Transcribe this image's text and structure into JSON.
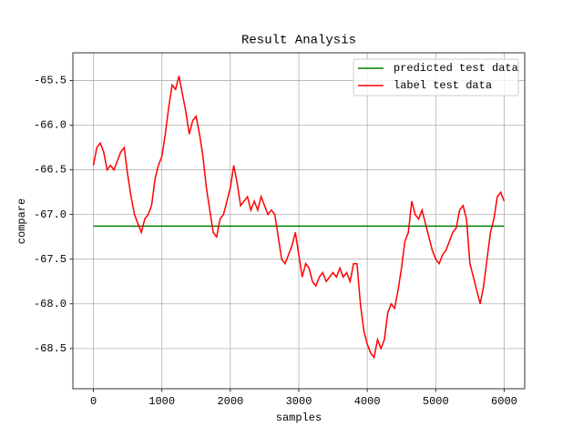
{
  "chart_data": {
    "type": "line",
    "title": "Result Analysis",
    "xlabel": "samples",
    "ylabel": "compare",
    "xlim": [
      -300,
      6300
    ],
    "ylim": [
      -68.95,
      -65.19
    ],
    "xticks": [
      0,
      1000,
      2000,
      3000,
      4000,
      5000,
      6000
    ],
    "yticks": [
      -65.5,
      {
        "value": -66.0,
        "label": "-66.0"
      },
      -66.5,
      {
        "value": -67.0,
        "label": "-67.0"
      },
      -67.5,
      {
        "value": -68.0,
        "label": "-68.0"
      },
      -68.5
    ],
    "grid": true,
    "legend": "upper right",
    "series": [
      {
        "name": "predicted test data",
        "color": "#008000",
        "x": [
          0,
          6000
        ],
        "values": [
          -67.13,
          -67.13
        ]
      },
      {
        "name": "label test data",
        "color": "#ff0000",
        "x": [
          0,
          50,
          100,
          150,
          200,
          250,
          300,
          350,
          400,
          450,
          500,
          550,
          600,
          650,
          700,
          750,
          800,
          850,
          900,
          950,
          1000,
          1050,
          1100,
          1150,
          1200,
          1250,
          1300,
          1350,
          1400,
          1450,
          1500,
          1550,
          1600,
          1650,
          1700,
          1750,
          1800,
          1850,
          1900,
          1950,
          2000,
          2050,
          2100,
          2150,
          2200,
          2250,
          2300,
          2350,
          2400,
          2450,
          2500,
          2550,
          2600,
          2650,
          2700,
          2750,
          2800,
          2850,
          2900,
          2950,
          3000,
          3050,
          3100,
          3150,
          3200,
          3250,
          3300,
          3350,
          3400,
          3450,
          3500,
          3550,
          3600,
          3650,
          3700,
          3750,
          3800,
          3850,
          3900,
          3950,
          4000,
          4050,
          4100,
          4150,
          4200,
          4250,
          4300,
          4350,
          4400,
          4450,
          4500,
          4550,
          4600,
          4650,
          4700,
          4750,
          4800,
          4850,
          4900,
          4950,
          5000,
          5050,
          5100,
          5150,
          5200,
          5250,
          5300,
          5350,
          5400,
          5450,
          5500,
          5550,
          5600,
          5650,
          5700,
          5750,
          5800,
          5850,
          5900,
          5950,
          6000
        ],
        "values": [
          -66.45,
          -66.25,
          -66.2,
          -66.3,
          -66.5,
          -66.45,
          -66.5,
          -66.4,
          -66.3,
          -66.25,
          -66.55,
          -66.8,
          -67.0,
          -67.1,
          -67.2,
          -67.05,
          -67.0,
          -66.9,
          -66.6,
          -66.45,
          -66.35,
          -66.1,
          -65.8,
          -65.55,
          -65.6,
          -65.45,
          -65.65,
          -65.85,
          -66.1,
          -65.95,
          -65.9,
          -66.1,
          -66.35,
          -66.7,
          -66.95,
          -67.2,
          -67.25,
          -67.05,
          -67.0,
          -66.85,
          -66.7,
          -66.45,
          -66.65,
          -66.9,
          -66.85,
          -66.8,
          -66.95,
          -66.85,
          -66.95,
          -66.8,
          -66.9,
          -67.0,
          -66.95,
          -67.0,
          -67.25,
          -67.5,
          -67.55,
          -67.45,
          -67.35,
          -67.2,
          -67.45,
          -67.7,
          -67.55,
          -67.6,
          -67.75,
          -67.8,
          -67.7,
          -67.65,
          -67.75,
          -67.7,
          -67.65,
          -67.7,
          -67.6,
          -67.7,
          -67.65,
          -67.75,
          -67.55,
          -67.55,
          -68.0,
          -68.3,
          -68.45,
          -68.55,
          -68.6,
          -68.4,
          -68.5,
          -68.4,
          -68.1,
          -68.0,
          -68.05,
          -67.85,
          -67.6,
          -67.3,
          -67.2,
          -66.85,
          -67.0,
          -67.05,
          -66.95,
          -67.1,
          -67.25,
          -67.4,
          -67.5,
          -67.55,
          -67.45,
          -67.4,
          -67.3,
          -67.2,
          -67.15,
          -66.95,
          -66.9,
          -67.05,
          -67.55,
          -67.7,
          -67.85,
          -68.0,
          -67.8,
          -67.5,
          -67.2,
          -67.05,
          -66.8,
          -66.75,
          -66.85
        ]
      }
    ]
  }
}
